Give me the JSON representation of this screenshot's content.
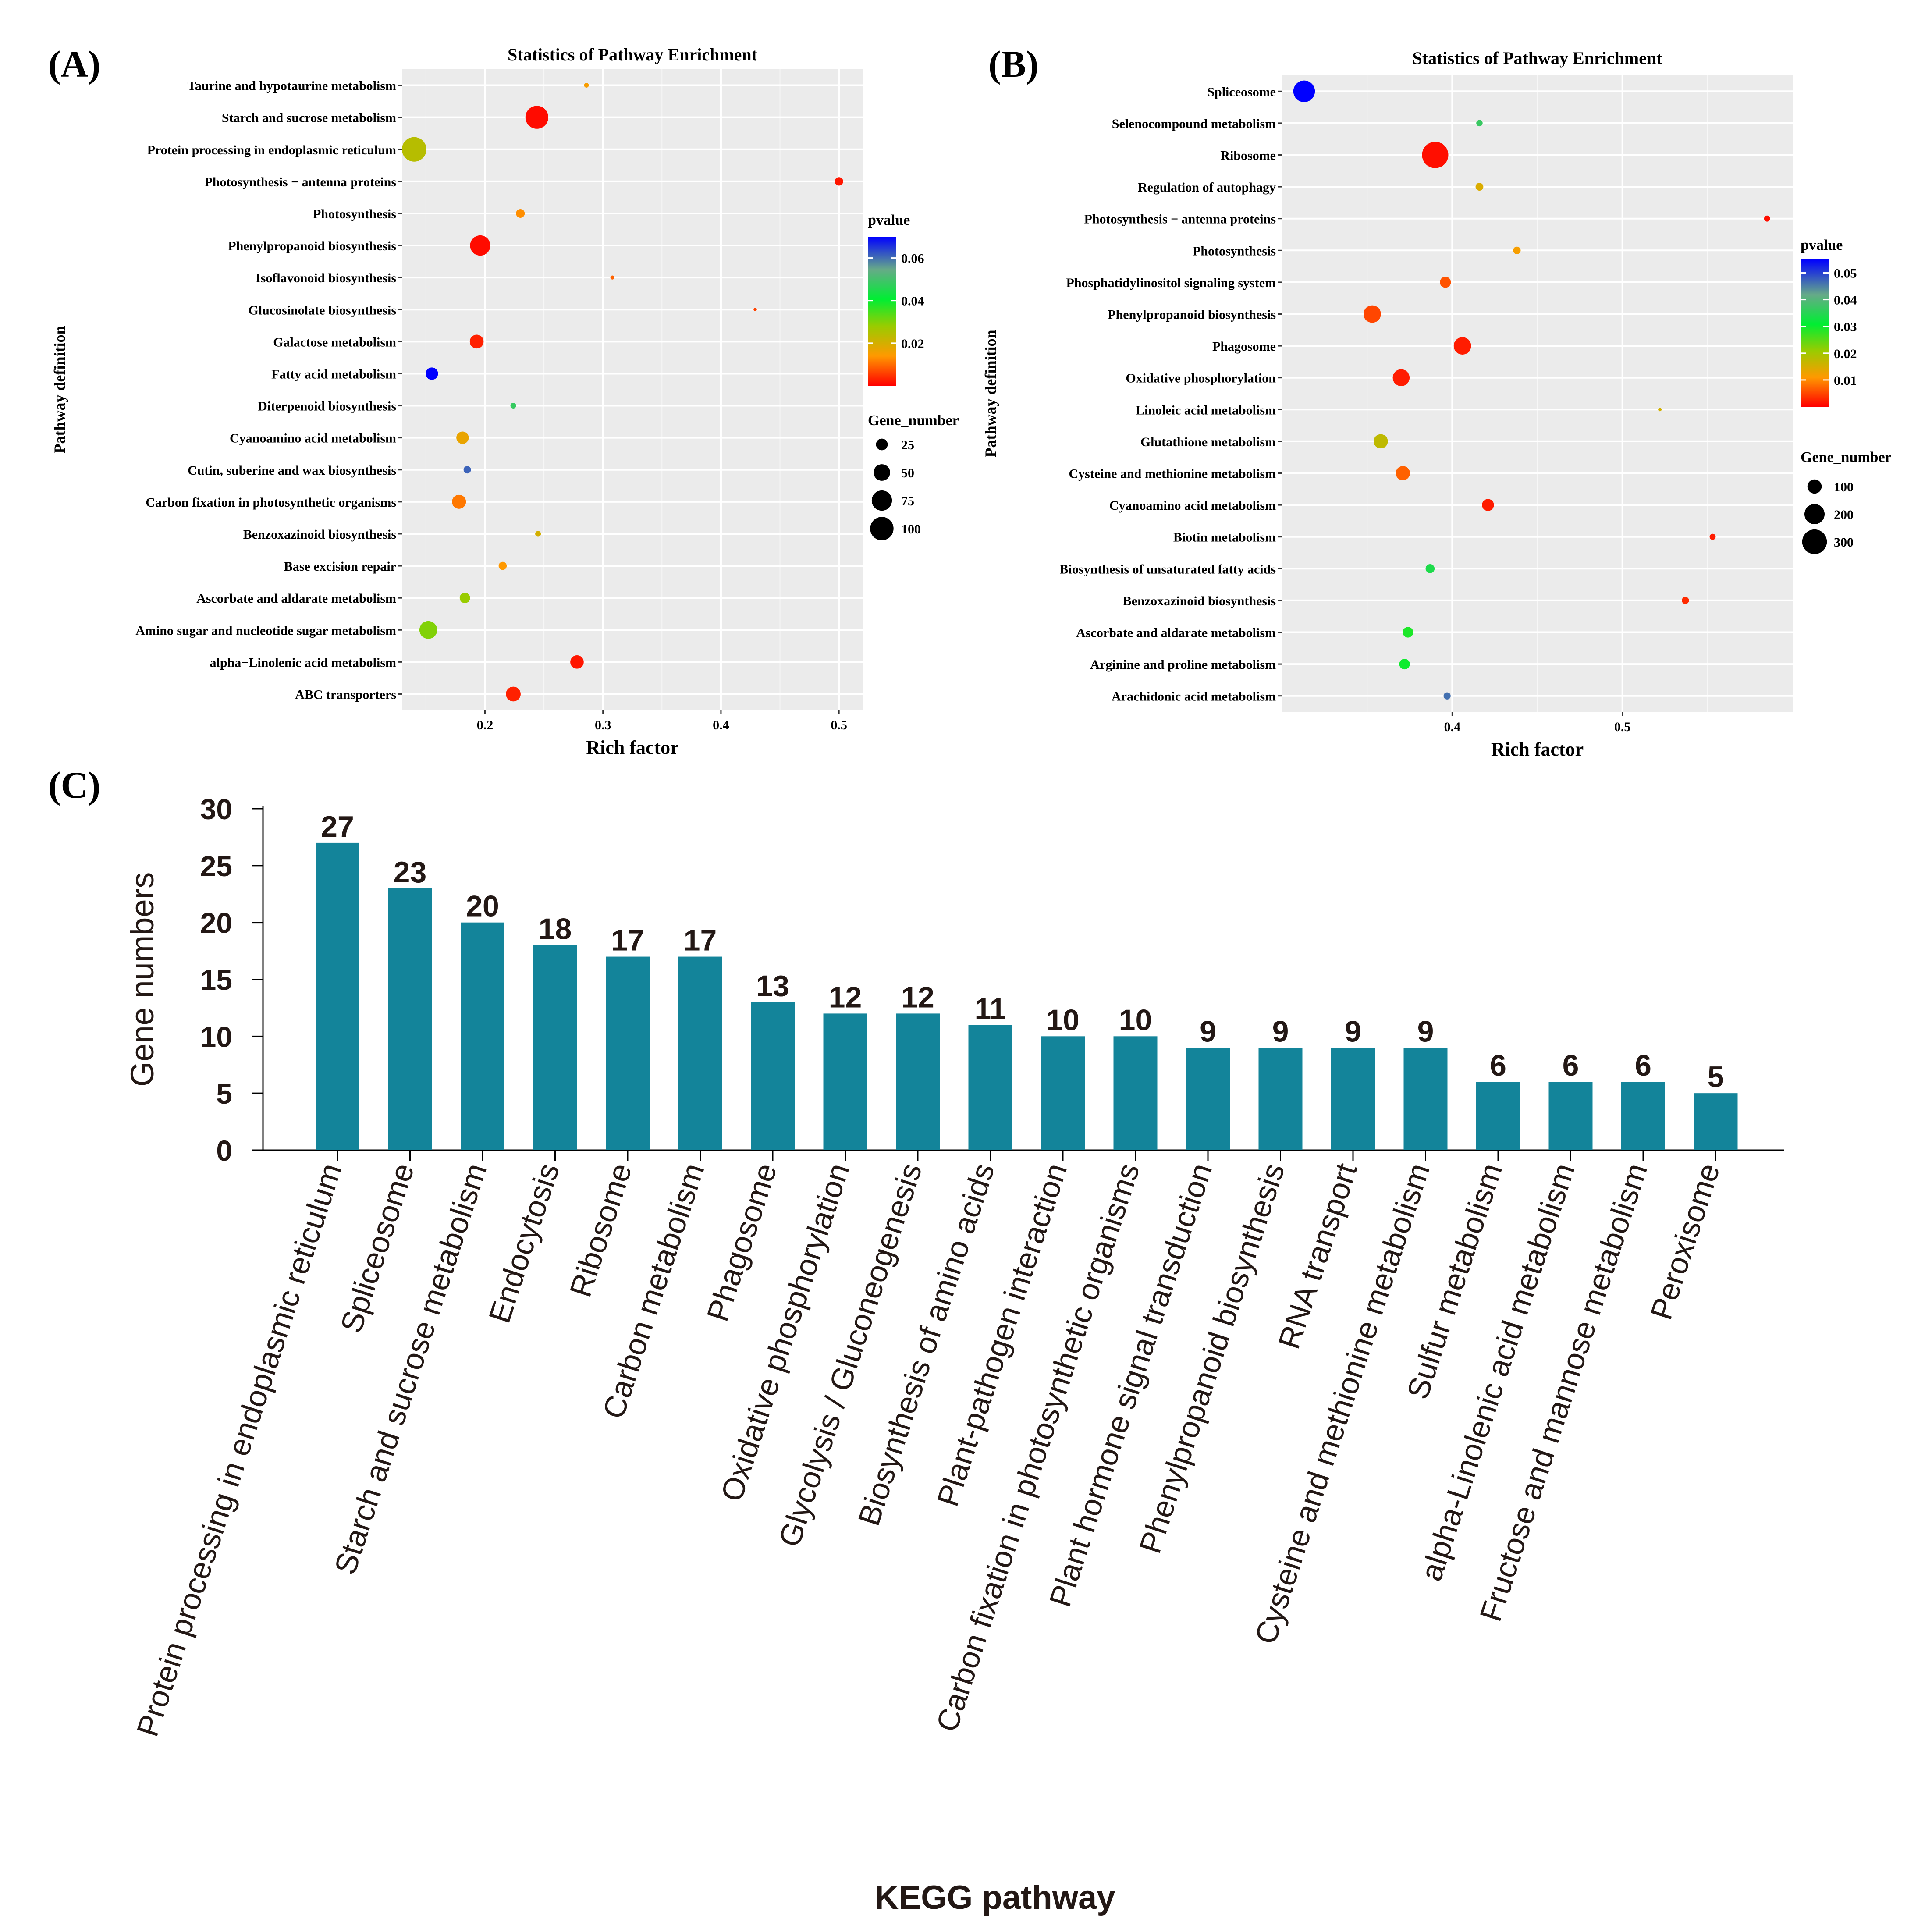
{
  "chart_data": [
    {
      "panel_label": "(A)",
      "type": "scatter",
      "title": "Statistics of Pathway Enrichment",
      "xlabel": "Rich factor",
      "ylabel": "Pathway definition",
      "xlim": [
        0.13,
        0.52
      ],
      "xticks": [
        0.2,
        0.3,
        0.4,
        0.5
      ],
      "xtick_labels": [
        "0.2",
        "0.3",
        "0.4",
        "0.5"
      ],
      "color_legend": {
        "title": "pvalue",
        "min": 0.0,
        "max": 0.07,
        "ticks": [
          0.02,
          0.04,
          0.06
        ],
        "tick_labels": [
          "0.02",
          "0.04",
          "0.06"
        ]
      },
      "size_legend": {
        "title": "Gene_number",
        "values": [
          25,
          50,
          75,
          100
        ],
        "labels": [
          "25",
          "50",
          "75",
          "100"
        ],
        "max": 110
      },
      "points": [
        {
          "pathway": "Taurine and hypotaurine metabolism",
          "rich_factor": 0.286,
          "pvalue": 0.015,
          "gene_number": 4
        },
        {
          "pathway": "Starch and sucrose metabolism",
          "rich_factor": 0.244,
          "pvalue": 0.001,
          "gene_number": 96
        },
        {
          "pathway": "Protein processing in endoplasmic reticulum",
          "rich_factor": 0.14,
          "pvalue": 0.024,
          "gene_number": 110
        },
        {
          "pathway": "Photosynthesis − antenna proteins",
          "rich_factor": 0.5,
          "pvalue": 0.002,
          "gene_number": 13
        },
        {
          "pathway": "Photosynthesis",
          "rich_factor": 0.23,
          "pvalue": 0.013,
          "gene_number": 14
        },
        {
          "pathway": "Phenylpropanoid biosynthesis",
          "rich_factor": 0.196,
          "pvalue": 0.001,
          "gene_number": 75
        },
        {
          "pathway": "Isoflavonoid biosynthesis",
          "rich_factor": 0.308,
          "pvalue": 0.009,
          "gene_number": 3
        },
        {
          "pathway": "Glucosinolate biosynthesis",
          "rich_factor": 0.429,
          "pvalue": 0.006,
          "gene_number": 2
        },
        {
          "pathway": "Galactose metabolism",
          "rich_factor": 0.193,
          "pvalue": 0.003,
          "gene_number": 35
        },
        {
          "pathway": "Fatty acid metabolism",
          "rich_factor": 0.155,
          "pvalue": 0.07,
          "gene_number": 28
        },
        {
          "pathway": "Diterpenoid biosynthesis",
          "rich_factor": 0.224,
          "pvalue": 0.048,
          "gene_number": 6
        },
        {
          "pathway": "Cyanoamino acid metabolism",
          "rich_factor": 0.181,
          "pvalue": 0.017,
          "gene_number": 28
        },
        {
          "pathway": "Cutin, suberine and wax biosynthesis",
          "rich_factor": 0.185,
          "pvalue": 0.061,
          "gene_number": 10
        },
        {
          "pathway": "Carbon fixation in photosynthetic organisms",
          "rich_factor": 0.178,
          "pvalue": 0.011,
          "gene_number": 36
        },
        {
          "pathway": "Benzoxazinoid biosynthesis",
          "rich_factor": 0.245,
          "pvalue": 0.02,
          "gene_number": 6
        },
        {
          "pathway": "Base excision repair",
          "rich_factor": 0.215,
          "pvalue": 0.014,
          "gene_number": 12
        },
        {
          "pathway": "Ascorbate and aldarate metabolism",
          "rich_factor": 0.183,
          "pvalue": 0.028,
          "gene_number": 20
        },
        {
          "pathway": "Amino sugar and nucleotide sugar metabolism",
          "rich_factor": 0.152,
          "pvalue": 0.03,
          "gene_number": 58
        },
        {
          "pathway": "alpha−Linolenic acid metabolism",
          "rich_factor": 0.278,
          "pvalue": 0.002,
          "gene_number": 33
        },
        {
          "pathway": "ABC transporters",
          "rich_factor": 0.224,
          "pvalue": 0.003,
          "gene_number": 40
        }
      ]
    },
    {
      "panel_label": "(B)",
      "type": "scatter",
      "title": "Statistics of Pathway Enrichment",
      "xlabel": "Rich factor",
      "ylabel": "Pathway definition",
      "xlim": [
        0.3,
        0.6
      ],
      "xticks": [
        0.4,
        0.5
      ],
      "xtick_labels": [
        "0.4",
        "0.5"
      ],
      "color_legend": {
        "title": "pvalue",
        "min": 0.0,
        "max": 0.055,
        "ticks": [
          0.01,
          0.02,
          0.03,
          0.04,
          0.05
        ],
        "tick_labels": [
          "0.01",
          "0.02",
          "0.03",
          "0.04",
          "0.05"
        ]
      },
      "size_legend": {
        "title": "Gene_number",
        "values": [
          100,
          200,
          300
        ],
        "labels": [
          "100",
          "200",
          "300"
        ],
        "max": 340
      },
      "points": [
        {
          "pathway": "Spliceosome",
          "rich_factor": 0.313,
          "pvalue": 0.055,
          "gene_number": 230
        },
        {
          "pathway": "Selenocompound metabolism",
          "rich_factor": 0.416,
          "pvalue": 0.038,
          "gene_number": 20
        },
        {
          "pathway": "Ribosome",
          "rich_factor": 0.39,
          "pvalue": 0.001,
          "gene_number": 340
        },
        {
          "pathway": "Regulation of autophagy",
          "rich_factor": 0.416,
          "pvalue": 0.015,
          "gene_number": 30
        },
        {
          "pathway": "Photosynthesis − antenna proteins",
          "rich_factor": 0.585,
          "pvalue": 0.001,
          "gene_number": 18
        },
        {
          "pathway": "Photosynthesis",
          "rich_factor": 0.438,
          "pvalue": 0.012,
          "gene_number": 28
        },
        {
          "pathway": "Phosphatidylinositol signaling system",
          "rich_factor": 0.396,
          "pvalue": 0.006,
          "gene_number": 60
        },
        {
          "pathway": "Phenylpropanoid biosynthesis",
          "rich_factor": 0.353,
          "pvalue": 0.005,
          "gene_number": 150
        },
        {
          "pathway": "Phagosome",
          "rich_factor": 0.406,
          "pvalue": 0.002,
          "gene_number": 150
        },
        {
          "pathway": "Oxidative phosphorylation",
          "rich_factor": 0.37,
          "pvalue": 0.002,
          "gene_number": 140
        },
        {
          "pathway": "Linoleic acid metabolism",
          "rich_factor": 0.522,
          "pvalue": 0.016,
          "gene_number": 6
        },
        {
          "pathway": "Glutathione metabolism",
          "rich_factor": 0.358,
          "pvalue": 0.018,
          "gene_number": 100
        },
        {
          "pathway": "Cysteine and methionine metabolism",
          "rich_factor": 0.371,
          "pvalue": 0.007,
          "gene_number": 100
        },
        {
          "pathway": "Cyanoamino acid metabolism",
          "rich_factor": 0.421,
          "pvalue": 0.002,
          "gene_number": 70
        },
        {
          "pathway": "Biotin metabolism",
          "rich_factor": 0.553,
          "pvalue": 0.002,
          "gene_number": 18
        },
        {
          "pathway": "Biosynthesis of unsaturated fatty acids",
          "rich_factor": 0.387,
          "pvalue": 0.035,
          "gene_number": 40
        },
        {
          "pathway": "Benzoxazinoid biosynthesis",
          "rich_factor": 0.537,
          "pvalue": 0.003,
          "gene_number": 25
        },
        {
          "pathway": "Ascorbate and aldarate metabolism",
          "rich_factor": 0.374,
          "pvalue": 0.03,
          "gene_number": 55
        },
        {
          "pathway": "Arginine and proline metabolism",
          "rich_factor": 0.372,
          "pvalue": 0.031,
          "gene_number": 55
        },
        {
          "pathway": "Arachidonic acid metabolism",
          "rich_factor": 0.397,
          "pvalue": 0.047,
          "gene_number": 25
        }
      ]
    },
    {
      "panel_label": "(C)",
      "type": "bar",
      "title": "",
      "xlabel": "KEGG pathway",
      "ylabel": "Gene numbers",
      "ylim": [
        0,
        30
      ],
      "yticks": [
        0,
        5,
        10,
        15,
        20,
        25,
        30
      ],
      "ytick_labels": [
        "0",
        "5",
        "10",
        "15",
        "20",
        "25",
        "30"
      ],
      "bar_color": "#13849a",
      "categories": [
        "Protein processing in endoplasmic reticulum",
        "Spliceosome",
        "Starch and sucrose metabolism",
        "Endocytosis",
        "Ribosome",
        "Carbon metabolism",
        "Phagosome",
        "Oxidative phosphorylation",
        "Glycolysis / Gluconeogenesis",
        "Biosynthesis of amino acids",
        "Plant-pathogen interaction",
        "Carbon fixation in photosynthetic organisms",
        "Plant hormone signal transduction",
        "Phenylpropanoid biosynthesis",
        "RNA transport",
        "Cysteine and methionine metabolism",
        "Sulfur metabolism",
        "alpha-Linolenic acid metabolism",
        "Fructose and mannose metabolism",
        "Peroxisome"
      ],
      "values": [
        27,
        23,
        20,
        18,
        17,
        17,
        13,
        12,
        12,
        11,
        10,
        10,
        9,
        9,
        9,
        9,
        6,
        6,
        6,
        5
      ]
    }
  ],
  "colors": {
    "panel_background": "#ebebeb",
    "gridline": "#ffffff",
    "text": "#000000",
    "bar_label_text": "#231815",
    "gradient_low": "#ff0000",
    "gradient_mid1": "#ff9900",
    "gradient_mid2": "#99cc00",
    "gradient_mid3": "#00ff33",
    "gradient_mid4": "#66aa88",
    "gradient_high": "#0000ff"
  }
}
